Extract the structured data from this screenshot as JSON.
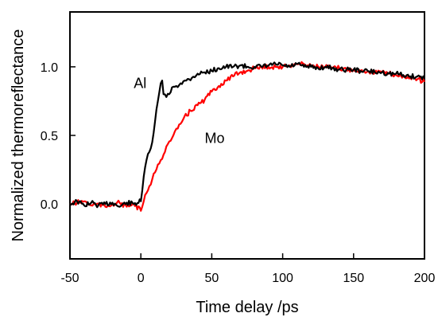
{
  "chart_data": {
    "type": "line",
    "title": "",
    "xlabel": "Time delay /ps",
    "ylabel": "Normalized thermoreflectance",
    "xlim": [
      -50,
      200
    ],
    "ylim": [
      -0.4,
      1.4
    ],
    "xticks": [
      -50,
      0,
      50,
      100,
      150,
      200
    ],
    "xtick_labels": [
      "-50",
      "0",
      "50",
      "100",
      "150",
      "200"
    ],
    "yticks": [
      0.0,
      0.5,
      1.0
    ],
    "ytick_labels": [
      "0.0",
      "0.5",
      "1.0"
    ],
    "grid": false,
    "legend": "none",
    "series": [
      {
        "label": "Al",
        "color": "#000000",
        "x": [
          -50,
          -45,
          -40,
          -35,
          -30,
          -25,
          -20,
          -15,
          -10,
          -5,
          0,
          1,
          2,
          4,
          6,
          8,
          10,
          12,
          14,
          15,
          16,
          18,
          20,
          22,
          25,
          28,
          32,
          36,
          40,
          45,
          50,
          55,
          60,
          65,
          70,
          75,
          80,
          85,
          90,
          95,
          100,
          105,
          110,
          115,
          120,
          125,
          130,
          135,
          140,
          145,
          150,
          155,
          160,
          165,
          170,
          175,
          180,
          185,
          190,
          195,
          200
        ],
        "y": [
          0.0,
          0.02,
          -0.01,
          0.01,
          -0.01,
          0.0,
          0.01,
          -0.02,
          0.01,
          0.0,
          0.02,
          0.1,
          0.2,
          0.32,
          0.38,
          0.45,
          0.6,
          0.75,
          0.88,
          0.9,
          0.8,
          0.78,
          0.8,
          0.85,
          0.86,
          0.88,
          0.9,
          0.92,
          0.95,
          0.96,
          0.97,
          0.99,
          1.0,
          1.0,
          1.01,
          1.0,
          1.0,
          1.0,
          1.01,
          1.02,
          1.01,
          1.0,
          1.02,
          1.0,
          1.0,
          0.99,
          1.0,
          0.99,
          0.98,
          0.98,
          0.98,
          0.97,
          0.97,
          0.96,
          0.96,
          0.95,
          0.95,
          0.94,
          0.93,
          0.93,
          0.92
        ]
      },
      {
        "label": "Mo",
        "color": "#ff0000",
        "x": [
          -50,
          -45,
          -40,
          -35,
          -30,
          -25,
          -20,
          -15,
          -10,
          -5,
          0,
          2,
          4,
          6,
          8,
          10,
          14,
          18,
          22,
          26,
          30,
          35,
          40,
          45,
          50,
          55,
          60,
          65,
          70,
          75,
          80,
          85,
          90,
          95,
          100,
          105,
          110,
          115,
          120,
          125,
          130,
          135,
          140,
          145,
          150,
          155,
          160,
          165,
          170,
          175,
          180,
          185,
          190,
          195,
          200
        ],
        "y": [
          0.0,
          0.01,
          0.02,
          -0.01,
          0.0,
          -0.02,
          0.0,
          0.01,
          -0.02,
          0.0,
          -0.05,
          0.02,
          0.08,
          0.13,
          0.18,
          0.23,
          0.32,
          0.42,
          0.48,
          0.55,
          0.62,
          0.68,
          0.72,
          0.76,
          0.82,
          0.86,
          0.9,
          0.93,
          0.96,
          0.97,
          0.99,
          1.0,
          1.0,
          1.0,
          1.0,
          1.01,
          1.02,
          1.02,
          1.01,
          1.0,
          1.0,
          0.99,
          0.99,
          0.98,
          0.98,
          0.97,
          0.97,
          0.96,
          0.96,
          0.95,
          0.94,
          0.93,
          0.92,
          0.91,
          0.89
        ]
      }
    ],
    "annotations": [
      {
        "text": "Al",
        "x": -5,
        "y": 0.88
      },
      {
        "text": "Mo",
        "x": 45,
        "y": 0.48
      }
    ]
  }
}
